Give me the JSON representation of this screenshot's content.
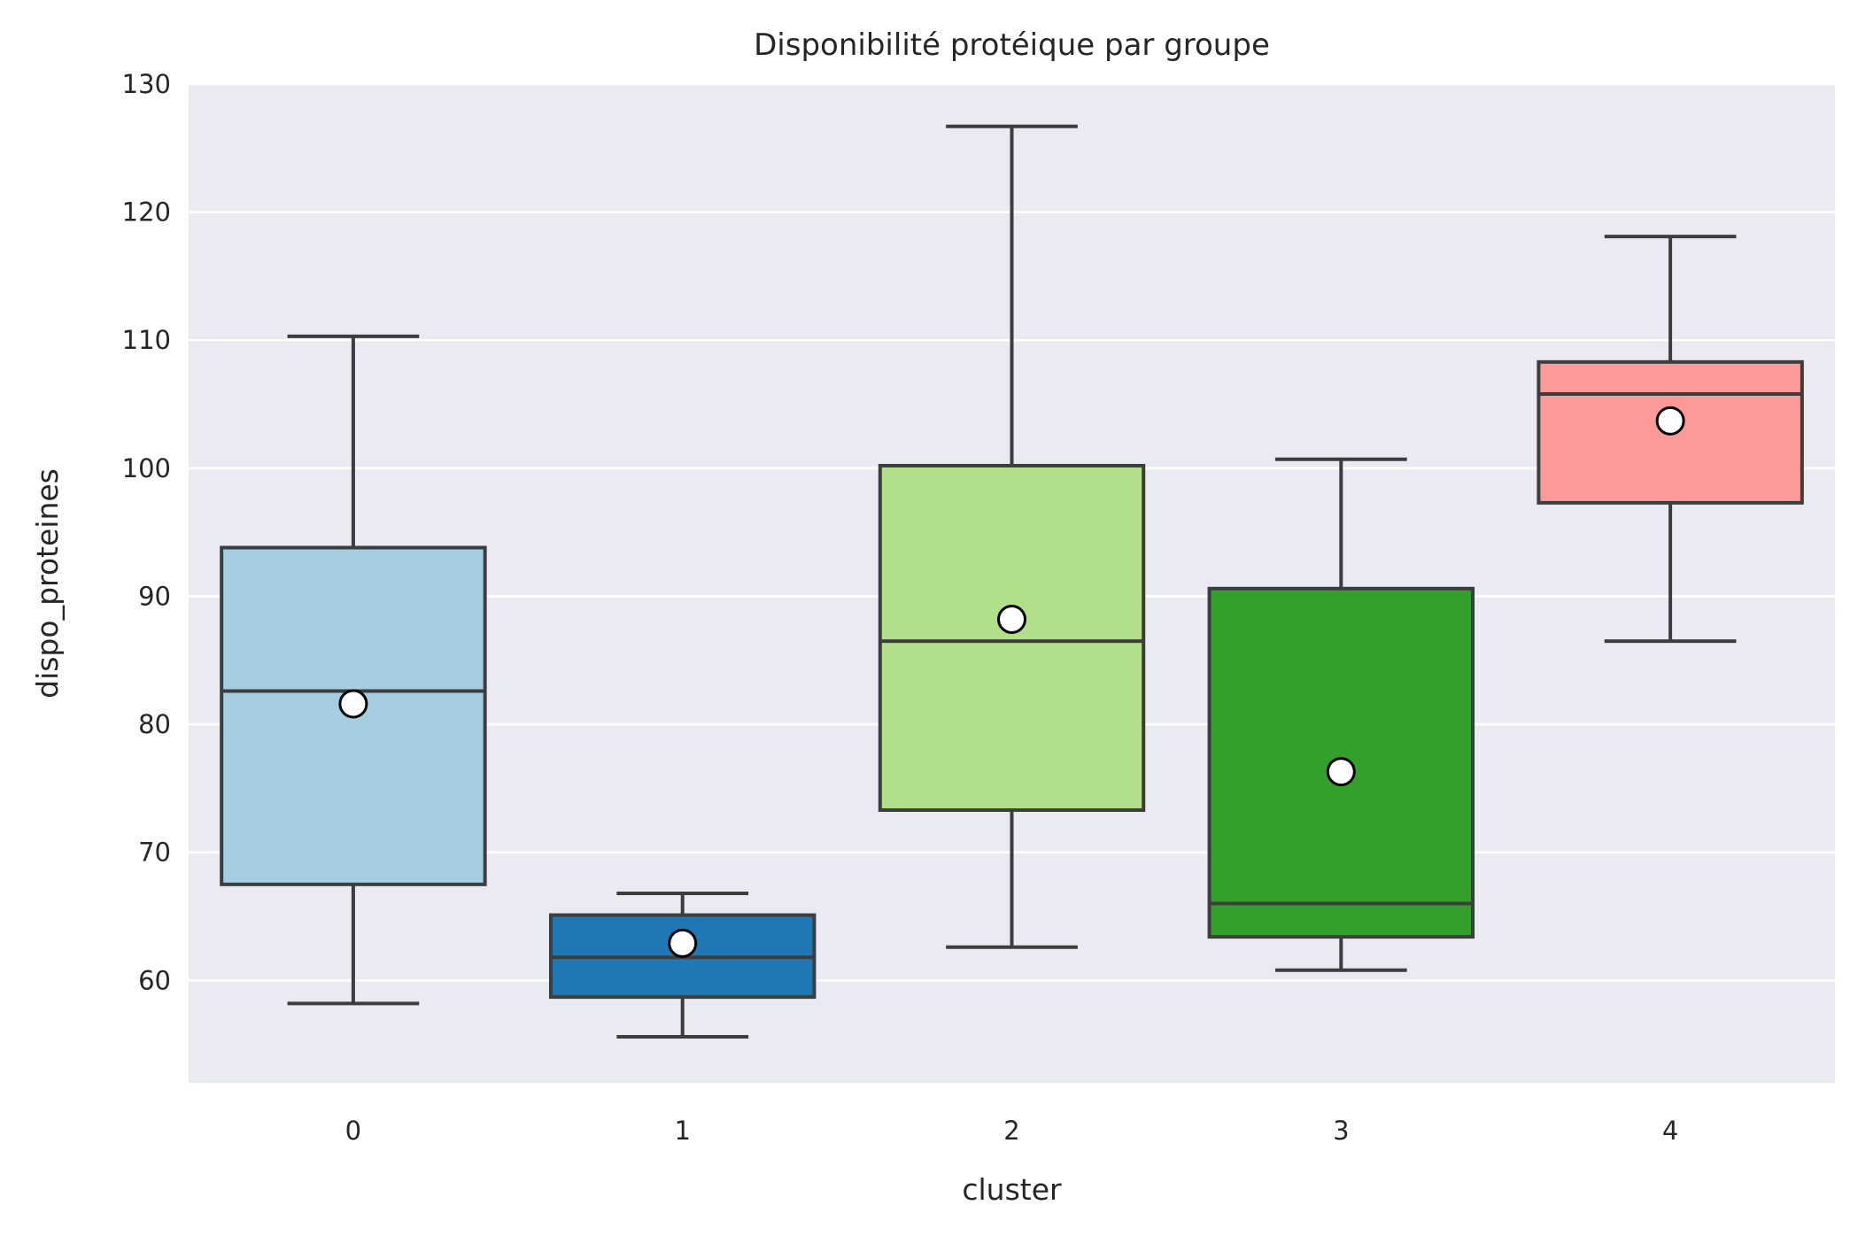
{
  "chart_data": {
    "type": "box",
    "title": "Disponibilité protéique par groupe",
    "xlabel": "cluster",
    "ylabel": "dispo_proteines",
    "ylim": [
      52,
      130
    ],
    "yticks": [
      60,
      70,
      80,
      90,
      100,
      110,
      120,
      130
    ],
    "grid": true,
    "legend": "none",
    "background": "#eaeaf2",
    "categories": [
      "0",
      "1",
      "2",
      "3",
      "4"
    ],
    "boxes": [
      {
        "category": "0",
        "whisker_low": 58.2,
        "q1": 67.5,
        "median": 82.6,
        "q3": 93.8,
        "whisker_high": 110.3,
        "mean": 81.6,
        "color": "#a6cee3"
      },
      {
        "category": "1",
        "whisker_low": 55.6,
        "q1": 58.7,
        "median": 61.8,
        "q3": 65.1,
        "whisker_high": 66.8,
        "mean": 62.9,
        "color": "#1f78b4"
      },
      {
        "category": "2",
        "whisker_low": 62.6,
        "q1": 73.3,
        "median": 86.5,
        "q3": 100.2,
        "whisker_high": 126.7,
        "mean": 88.2,
        "color": "#b2df8a"
      },
      {
        "category": "3",
        "whisker_low": 60.8,
        "q1": 63.4,
        "median": 66.0,
        "q3": 90.6,
        "whisker_high": 100.7,
        "mean": 76.3,
        "color": "#33a02c"
      },
      {
        "category": "4",
        "whisker_low": 86.5,
        "q1": 97.3,
        "median": 105.8,
        "q3": 108.3,
        "whisker_high": 118.1,
        "mean": 103.7,
        "color": "#fb9a99"
      }
    ]
  }
}
